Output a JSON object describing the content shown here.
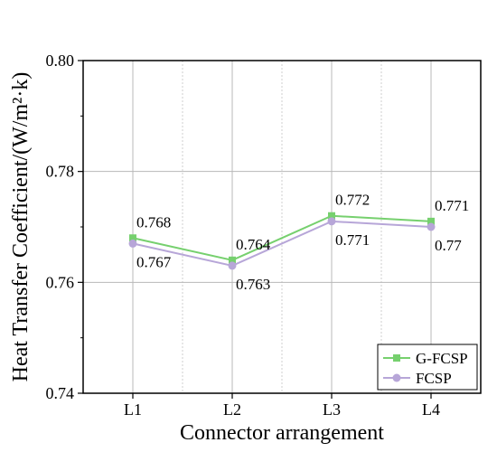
{
  "chart_data": {
    "type": "line",
    "xlabel": "Connector arrangement",
    "ylabel": "Heat Transfer Coefficient/(W/m²·k)",
    "categories": [
      "L1",
      "L2",
      "L3",
      "L4"
    ],
    "ylim": [
      0.74,
      0.8
    ],
    "yticks": [
      "0.74",
      "0.76",
      "0.78",
      "0.80"
    ],
    "grid": true,
    "legend_position": "bottom-right",
    "series": [
      {
        "name": "G-FCSP",
        "values": [
          0.768,
          0.764,
          0.772,
          0.771
        ],
        "labels": [
          "0.768",
          "0.764",
          "0.772",
          "0.771"
        ],
        "color": "#76d06e",
        "marker": "square",
        "label_side": "above"
      },
      {
        "name": "FCSP",
        "values": [
          0.767,
          0.763,
          0.771,
          0.77
        ],
        "labels": [
          "0.767",
          "0.763",
          "0.771",
          "0.77"
        ],
        "color": "#b7a6d8",
        "marker": "circle",
        "label_side": "below"
      }
    ]
  }
}
